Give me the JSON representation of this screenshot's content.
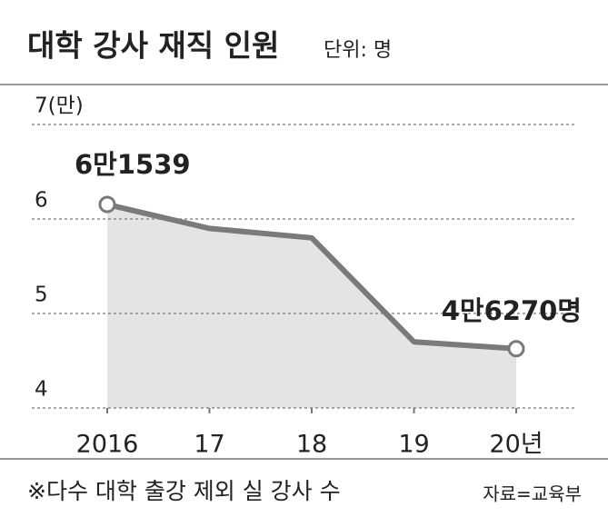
{
  "chart_data": {
    "type": "line",
    "title": "대학 강사 재직 인원",
    "subtitle": "단위: 명",
    "categories": [
      "2016",
      "17",
      "18",
      "19",
      "20년"
    ],
    "values": [
      6.1539,
      5.9,
      5.8,
      4.7,
      4.627
    ],
    "value_labels": [
      "6만1539",
      null,
      null,
      null,
      "4만6270명"
    ],
    "color": "#7a7a7a",
    "fill": "#e4e4e4",
    "ylim": [
      4,
      7
    ],
    "yticks": [
      4,
      5,
      6,
      {
        "value": 7,
        "label": "7(만)"
      }
    ],
    "grid": true,
    "note": "※다수 대학 출강 제외 실 강사 수",
    "source": "자료=교육부"
  }
}
